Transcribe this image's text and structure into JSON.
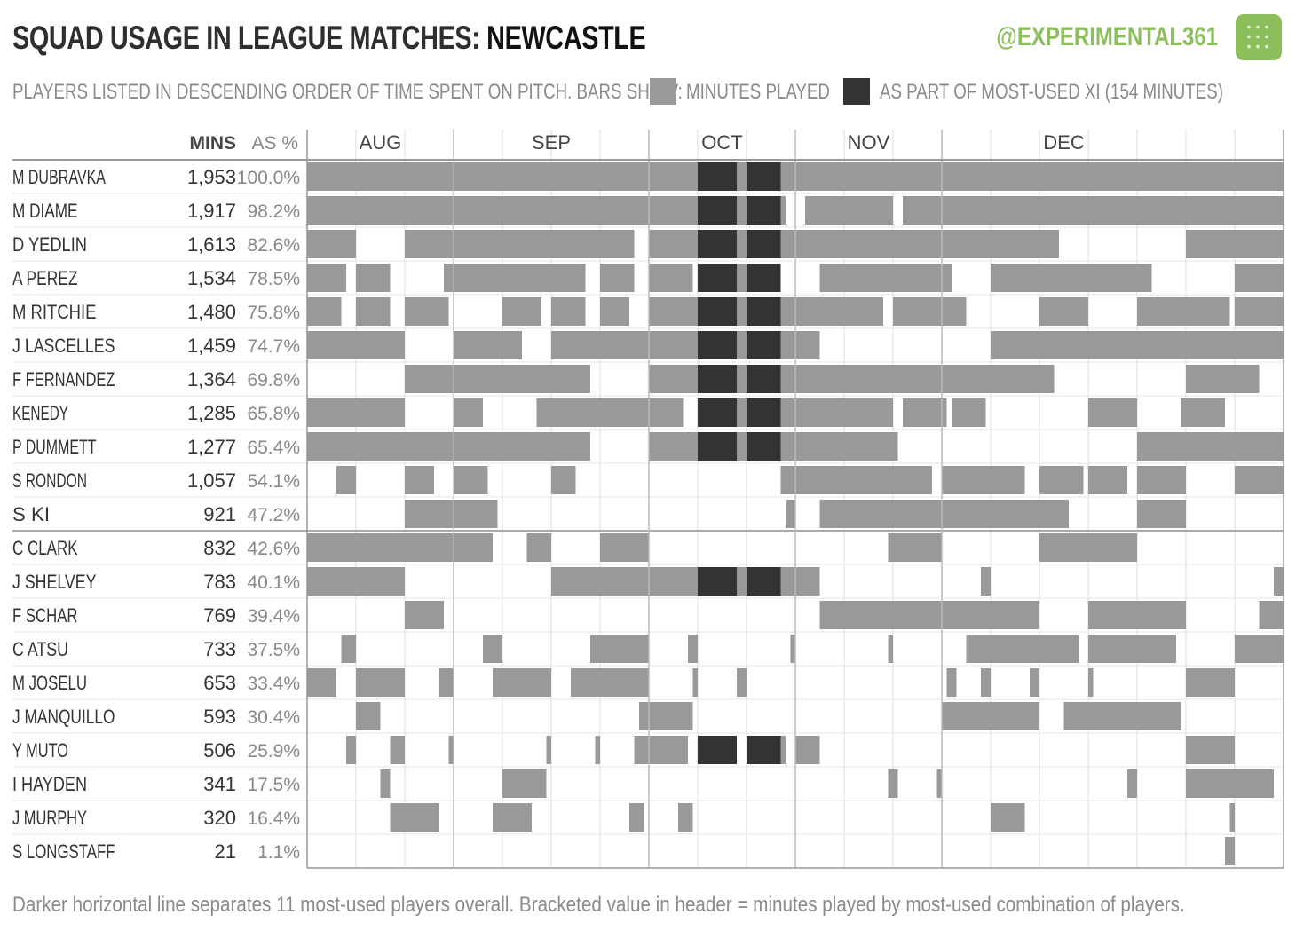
{
  "header": {
    "title_prefix": "SQUAD USAGE IN LEAGUE MATCHES: ",
    "title_team": "NEWCASTLE",
    "handle": "@EXPERIMENTAL361",
    "subtitle": "PLAYERS LISTED IN DESCENDING ORDER OF TIME SPENT ON PITCH.  BARS SHOW:",
    "legend_minutes": "MINUTES PLAYED",
    "legend_xi": "AS PART OF MOST-USED XI  (154 MINUTES)"
  },
  "footnote": "Darker horizontal line separates 11 most-used players overall.   Bracketed value in header = minutes played by most-used combination of players.",
  "colors": {
    "minutes": "#999999",
    "xi": "#333333",
    "brand": "#8cbf5c",
    "grid": "#dddddd",
    "text": "#444444"
  },
  "chart_data": {
    "type": "bar",
    "columns": {
      "name": "",
      "mins": "MINS",
      "pct": "AS %"
    },
    "months": [
      "AUG",
      "SEP",
      "OCT",
      "NOV",
      "DEC"
    ],
    "matches_per_month": [
      3,
      4,
      3,
      3,
      5
    ],
    "total_matches": 20,
    "total_minutes": 1953,
    "separator_after_row": 11,
    "players": [
      {
        "name": "M DUBRAVKA",
        "mins": "1,953",
        "pct": "100.0%",
        "bars": [
          [
            0,
            20
          ]
        ],
        "xi": [
          [
            8,
            8.8
          ],
          [
            9,
            9.7
          ]
        ]
      },
      {
        "name": "M DIAME",
        "mins": "1,917",
        "pct": "98.2%",
        "bars": [
          [
            0,
            9.8
          ],
          [
            10.2,
            12
          ],
          [
            12.2,
            20
          ]
        ],
        "xi": [
          [
            8,
            8.8
          ],
          [
            9,
            9.7
          ]
        ]
      },
      {
        "name": "D YEDLIN",
        "mins": "1,613",
        "pct": "82.6%",
        "bars": [
          [
            0,
            1
          ],
          [
            2,
            6.7
          ],
          [
            7,
            15.4
          ],
          [
            18,
            20
          ]
        ],
        "xi": [
          [
            8,
            8.8
          ],
          [
            9,
            9.7
          ]
        ]
      },
      {
        "name": "A PEREZ",
        "mins": "1,534",
        "pct": "78.5%",
        "bars": [
          [
            0,
            0.8
          ],
          [
            1,
            1.7
          ],
          [
            2.8,
            5.7
          ],
          [
            6,
            6.7
          ],
          [
            7,
            7.9
          ],
          [
            8,
            9.7
          ],
          [
            10.5,
            13.2
          ],
          [
            14,
            17.3
          ],
          [
            19,
            20
          ]
        ],
        "xi": [
          [
            8,
            8.8
          ],
          [
            9,
            9.7
          ]
        ]
      },
      {
        "name": "M RITCHIE",
        "mins": "1,480",
        "pct": "75.8%",
        "bars": [
          [
            0,
            0.7
          ],
          [
            1,
            1.7
          ],
          [
            2,
            2.9
          ],
          [
            4,
            4.8
          ],
          [
            5,
            5.7
          ],
          [
            6,
            6.6
          ],
          [
            7,
            11.8
          ],
          [
            12,
            13.5
          ],
          [
            15,
            16
          ],
          [
            17,
            18.9
          ],
          [
            19,
            20
          ]
        ],
        "xi": [
          [
            8,
            8.8
          ],
          [
            9,
            9.7
          ]
        ]
      },
      {
        "name": "J LASCELLES",
        "mins": "1,459",
        "pct": "74.7%",
        "bars": [
          [
            0,
            2
          ],
          [
            3,
            4.4
          ],
          [
            5,
            10.5
          ],
          [
            14,
            20
          ]
        ],
        "xi": [
          [
            8,
            8.8
          ],
          [
            9,
            9.7
          ]
        ]
      },
      {
        "name": "F FERNANDEZ",
        "mins": "1,364",
        "pct": "69.8%",
        "bars": [
          [
            2,
            5.8
          ],
          [
            7,
            15.3
          ],
          [
            18,
            19.5
          ]
        ],
        "xi": [
          [
            8,
            8.8
          ],
          [
            9,
            9.7
          ]
        ]
      },
      {
        "name": "KENEDY",
        "mins": "1,285",
        "pct": "65.8%",
        "bars": [
          [
            0,
            2
          ],
          [
            3,
            3.6
          ],
          [
            4.7,
            7.7
          ],
          [
            8,
            12
          ],
          [
            12.2,
            13.1
          ],
          [
            13.2,
            13.9
          ],
          [
            16,
            17
          ],
          [
            17.9,
            18.8
          ]
        ],
        "xi": [
          [
            8,
            8.8
          ],
          [
            9,
            9.7
          ]
        ]
      },
      {
        "name": "P DUMMETT",
        "mins": "1,277",
        "pct": "65.4%",
        "bars": [
          [
            0,
            5.8
          ],
          [
            7,
            12.1
          ],
          [
            17,
            20
          ]
        ],
        "xi": [
          [
            8,
            8.8
          ],
          [
            9,
            9.7
          ]
        ]
      },
      {
        "name": "S RONDON",
        "mins": "1,057",
        "pct": "54.1%",
        "bars": [
          [
            0.6,
            1
          ],
          [
            2,
            2.6
          ],
          [
            3,
            3.7
          ],
          [
            5,
            5.5
          ],
          [
            9.7,
            12.8
          ],
          [
            13,
            14.7
          ],
          [
            15,
            15.9
          ],
          [
            16,
            16.8
          ],
          [
            17,
            18
          ],
          [
            19,
            20
          ]
        ],
        "xi": []
      },
      {
        "name": "S KI",
        "mins": "921",
        "pct": "47.2%",
        "bars": [
          [
            2,
            3.9
          ],
          [
            9.8,
            10
          ],
          [
            10.5,
            15.6
          ],
          [
            17,
            18
          ]
        ],
        "xi": []
      },
      {
        "name": "C CLARK",
        "mins": "832",
        "pct": "42.6%",
        "bars": [
          [
            0,
            3.8
          ],
          [
            4.5,
            5
          ],
          [
            6,
            7
          ],
          [
            11.9,
            13
          ],
          [
            15,
            17
          ]
        ],
        "xi": []
      },
      {
        "name": "J SHELVEY",
        "mins": "783",
        "pct": "40.1%",
        "bars": [
          [
            0,
            2
          ],
          [
            5,
            10.5
          ],
          [
            13.8,
            14
          ],
          [
            19.8,
            20
          ]
        ],
        "xi": [
          [
            8,
            8.8
          ],
          [
            9,
            9.7
          ]
        ]
      },
      {
        "name": "F SCHAR",
        "mins": "769",
        "pct": "39.4%",
        "bars": [
          [
            2,
            2.8
          ],
          [
            10.5,
            15
          ],
          [
            16,
            18
          ],
          [
            19.5,
            20
          ]
        ],
        "xi": []
      },
      {
        "name": "C ATSU",
        "mins": "733",
        "pct": "37.5%",
        "bars": [
          [
            0.7,
            1
          ],
          [
            3.6,
            4
          ],
          [
            5.8,
            7
          ],
          [
            7.8,
            8
          ],
          [
            9.9,
            10
          ],
          [
            11.9,
            12
          ],
          [
            13.5,
            15.8
          ],
          [
            16,
            17.8
          ],
          [
            19,
            20
          ]
        ],
        "xi": []
      },
      {
        "name": "M JOSELU",
        "mins": "653",
        "pct": "33.4%",
        "bars": [
          [
            0,
            0.6
          ],
          [
            1,
            2
          ],
          [
            2.7,
            3
          ],
          [
            3.8,
            5
          ],
          [
            5.4,
            7
          ],
          [
            7.9,
            8
          ],
          [
            8.8,
            9
          ],
          [
            13.1,
            13.3
          ],
          [
            13.8,
            14
          ],
          [
            14.8,
            15
          ],
          [
            16,
            16.1
          ],
          [
            18,
            19
          ]
        ],
        "xi": []
      },
      {
        "name": "J MANQUILLO",
        "mins": "593",
        "pct": "30.4%",
        "bars": [
          [
            1,
            1.5
          ],
          [
            6.8,
            7.9
          ],
          [
            13,
            15
          ],
          [
            15.5,
            17.9
          ]
        ],
        "xi": []
      },
      {
        "name": "Y MUTO",
        "mins": "506",
        "pct": "25.9%",
        "bars": [
          [
            0.8,
            1
          ],
          [
            1.7,
            2
          ],
          [
            2.9,
            3
          ],
          [
            4.9,
            5
          ],
          [
            5.9,
            6
          ],
          [
            6.7,
            7.8
          ],
          [
            9.7,
            9.8
          ],
          [
            10,
            10.5
          ],
          [
            18,
            19
          ]
        ],
        "xi": [
          [
            8,
            8.8
          ],
          [
            9,
            9.7
          ]
        ]
      },
      {
        "name": "I HAYDEN",
        "mins": "341",
        "pct": "17.5%",
        "bars": [
          [
            1.5,
            1.7
          ],
          [
            4,
            4.9
          ],
          [
            11.9,
            12.1
          ],
          [
            12.9,
            13
          ],
          [
            16.8,
            17
          ],
          [
            18,
            19.8
          ]
        ],
        "xi": []
      },
      {
        "name": "J MURPHY",
        "mins": "320",
        "pct": "16.4%",
        "bars": [
          [
            1.7,
            2.7
          ],
          [
            3.8,
            4.6
          ],
          [
            6.6,
            6.9
          ],
          [
            7.6,
            7.9
          ],
          [
            14,
            14.7
          ],
          [
            18.9,
            19
          ]
        ],
        "xi": []
      },
      {
        "name": "S LONGSTAFF",
        "mins": "21",
        "pct": "1.1%",
        "bars": [
          [
            18.8,
            19
          ]
        ],
        "xi": []
      }
    ]
  }
}
